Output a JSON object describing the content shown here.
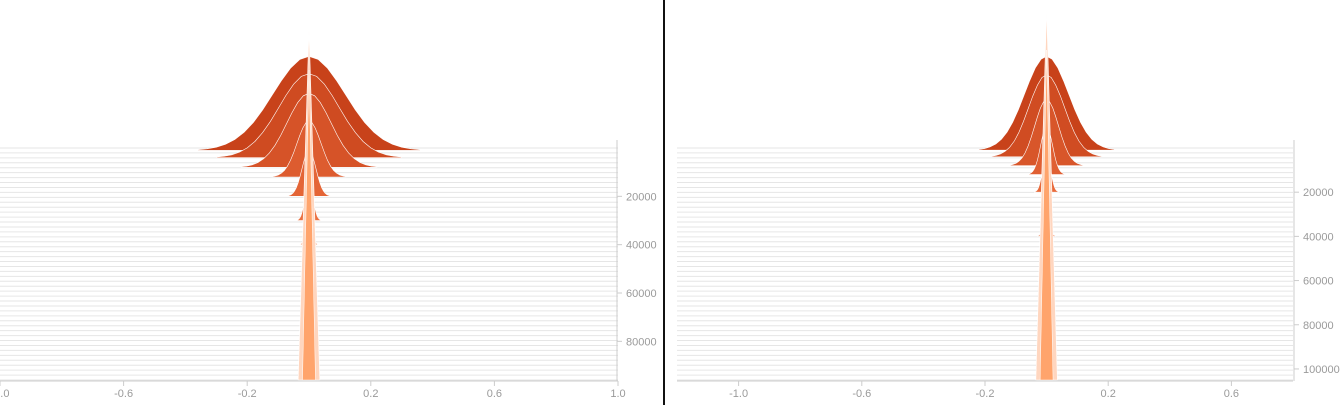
{
  "colors": {
    "back": "#c8421a",
    "mid": "#e8693a",
    "front": "#ffa46c",
    "light": "#ffd6bf",
    "line": "#e6e6e6",
    "axis": "#cccccc",
    "text": "#9a9a9a"
  },
  "chart_data": [
    {
      "type": "area",
      "title": "",
      "xlabel": "",
      "ylabel": "",
      "xlim": [
        -1.0,
        1.0
      ],
      "x_ticks": [
        "-1.0",
        "-0.6",
        "-0.2",
        "0.2",
        "0.6",
        "1.0"
      ],
      "ylim": [
        0,
        96000
      ],
      "y_ticks": [
        "20000",
        "40000",
        "60000",
        "80000"
      ],
      "peak_x": 0.0,
      "description_series": [
        {
          "step": 1000,
          "spread": 0.36,
          "height": 34
        },
        {
          "step": 4000,
          "spread": 0.3,
          "height": 30
        },
        {
          "step": 8000,
          "spread": 0.22,
          "height": 26
        },
        {
          "step": 12000,
          "spread": 0.12,
          "height": 14
        },
        {
          "step": 20000,
          "spread": 0.07,
          "height": 10
        },
        {
          "step": 30000,
          "spread": 0.04,
          "height": 8
        },
        {
          "step": 40000,
          "spread": 0.03,
          "height": 7
        },
        {
          "step": 60000,
          "spread": 0.03,
          "height": 6
        },
        {
          "step": 80000,
          "spread": 0.03,
          "height": 6
        },
        {
          "step": 96000,
          "spread": 0.03,
          "height": 6
        }
      ]
    },
    {
      "type": "area",
      "title": "",
      "xlabel": "",
      "ylabel": "",
      "xlim": [
        -1.2,
        0.8
      ],
      "x_ticks": [
        "-1.0",
        "-0.6",
        "-0.2",
        "0.2",
        "0.6"
      ],
      "ylim": [
        0,
        105000
      ],
      "y_ticks": [
        "20000",
        "40000",
        "60000",
        "80000",
        "100000"
      ],
      "peak_x": 0.0,
      "description_series": [
        {
          "step": 1000,
          "spread": 0.22,
          "height": 40
        },
        {
          "step": 4000,
          "spread": 0.18,
          "height": 34
        },
        {
          "step": 8000,
          "spread": 0.12,
          "height": 24
        },
        {
          "step": 12000,
          "spread": 0.06,
          "height": 12
        },
        {
          "step": 20000,
          "spread": 0.04,
          "height": 8
        },
        {
          "step": 40000,
          "spread": 0.03,
          "height": 6
        },
        {
          "step": 60000,
          "spread": 0.03,
          "height": 6
        },
        {
          "step": 80000,
          "spread": 0.03,
          "height": 6
        },
        {
          "step": 105000,
          "spread": 0.03,
          "height": 6
        }
      ]
    }
  ]
}
